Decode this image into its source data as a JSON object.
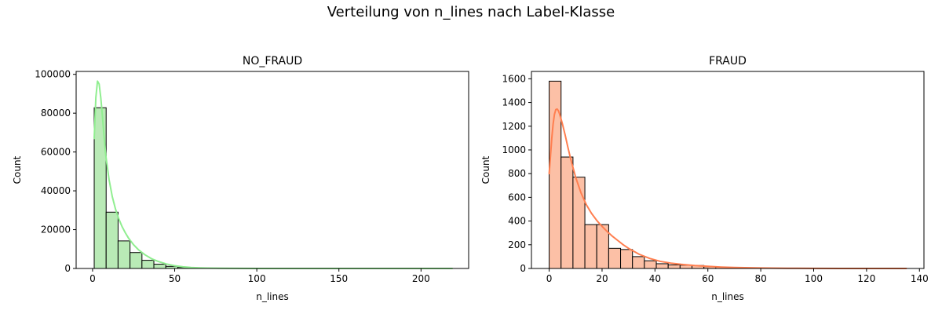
{
  "figure": {
    "title": "Verteilung von n_lines nach Label-Klasse"
  },
  "chart_data": [
    {
      "type": "bar",
      "subtype": "histogram",
      "title": "NO_FRAUD",
      "xlabel": "n_lines",
      "ylabel": "Count",
      "xlim": [
        -10,
        229
      ],
      "ylim": [
        0,
        101500
      ],
      "xticks": [
        0,
        50,
        100,
        150,
        200
      ],
      "yticks": [
        0,
        20000,
        40000,
        60000,
        80000,
        100000
      ],
      "bar_color": "#b9eab6",
      "line_color": "#90ee90",
      "bin_edges": [
        1,
        8.27,
        15.53,
        22.8,
        30.07,
        37.33,
        44.6,
        51.87,
        59.13,
        66.4,
        73.67,
        80.93,
        88.2,
        95.47,
        102.73,
        110,
        117.27,
        124.53,
        131.8,
        139.07,
        146.33,
        153.6,
        160.87,
        168.13,
        175.4,
        182.67,
        189.93,
        197.2,
        204.47,
        211.73,
        219
      ],
      "counts": [
        82800,
        29000,
        14200,
        8200,
        4200,
        2200,
        1100,
        550,
        280,
        140,
        70,
        35,
        18,
        10,
        5,
        3,
        2,
        1,
        1,
        1,
        0,
        0,
        0,
        0,
        0,
        0,
        0,
        0,
        0,
        1
      ],
      "kde": {
        "x": [
          1,
          2,
          3,
          4,
          5,
          6,
          7,
          8,
          10,
          12,
          14,
          16,
          18,
          20,
          22,
          25,
          28,
          32,
          36,
          40,
          45,
          50,
          55,
          60,
          65,
          70,
          80,
          100,
          130,
          160,
          190,
          219
        ],
        "y": [
          67000,
          88000,
          96500,
          95000,
          88000,
          78500,
          68000,
          58500,
          46000,
          37000,
          30500,
          25500,
          21500,
          18300,
          15500,
          12200,
          9600,
          7000,
          5000,
          3600,
          2300,
          1400,
          850,
          520,
          320,
          190,
          80,
          20,
          0,
          0,
          0,
          0
        ]
      }
    },
    {
      "type": "bar",
      "subtype": "histogram",
      "title": "FRAUD",
      "xlabel": "n_lines",
      "ylabel": "Count",
      "xlim": [
        -6.7,
        141.7
      ],
      "ylim": [
        0,
        1662
      ],
      "xticks": [
        0,
        20,
        40,
        60,
        80,
        100,
        120,
        140
      ],
      "yticks": [
        0,
        200,
        400,
        600,
        800,
        1000,
        1200,
        1400,
        1600
      ],
      "bar_color": "#fcc0a6",
      "line_color": "#ff7f50",
      "bin_edges": [
        0,
        4.5,
        9,
        13.5,
        18,
        22.5,
        27,
        31.5,
        36,
        40.5,
        45,
        49.5,
        54,
        58.5,
        63,
        67.5,
        72,
        76.5,
        81,
        85.5,
        90,
        94.5,
        99,
        103.5,
        108,
        112.5,
        117,
        121.5,
        126,
        130.5,
        135
      ],
      "counts": [
        1580,
        940,
        770,
        370,
        370,
        170,
        160,
        100,
        65,
        40,
        30,
        28,
        25,
        15,
        12,
        8,
        5,
        4,
        3,
        2,
        1,
        1,
        1,
        1,
        0,
        1,
        0,
        0,
        1,
        1
      ],
      "kde": {
        "x": [
          0,
          0.5,
          1,
          1.5,
          2,
          2.5,
          3,
          3.5,
          4,
          5,
          6,
          7,
          8,
          10,
          12,
          14,
          16,
          18,
          20,
          22,
          24,
          26,
          28,
          30,
          34,
          38,
          42,
          46,
          50,
          55,
          60,
          65,
          70,
          80,
          90,
          100,
          110,
          120,
          135
        ],
        "y": [
          800,
          950,
          1100,
          1220,
          1300,
          1340,
          1345,
          1330,
          1300,
          1220,
          1130,
          1030,
          935,
          770,
          640,
          540,
          465,
          405,
          355,
          310,
          270,
          235,
          200,
          170,
          120,
          85,
          60,
          45,
          35,
          25,
          18,
          12,
          8,
          4,
          2,
          1,
          0,
          0,
          0
        ]
      }
    }
  ]
}
